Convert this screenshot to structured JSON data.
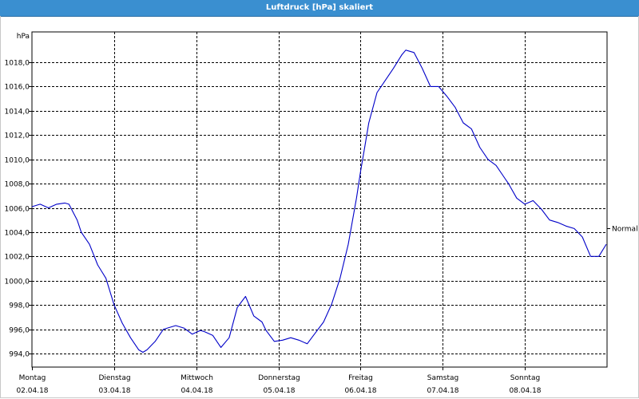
{
  "window": {
    "title": "Luftdruck [hPa] skaliert"
  },
  "chart_data": {
    "type": "line",
    "title": "Luftdruck [hPa] skaliert",
    "ylabel": "hPa",
    "xlabel": "",
    "ylim": [
      993,
      1020
    ],
    "xlim": [
      0,
      7
    ],
    "y_ticks": [
      994.0,
      996.0,
      998.0,
      1000.0,
      1002.0,
      1004.0,
      1006.0,
      1008.0,
      1010.0,
      1012.0,
      1014.0,
      1016.0,
      1018.0
    ],
    "y_tick_labels": [
      "994,0",
      "996,0",
      "998,0",
      "1000,0",
      "1002,0",
      "1004,0",
      "1006,0",
      "1008,0",
      "1010,0",
      "1012,0",
      "1014,0",
      "1016,0",
      "1018,0"
    ],
    "x_ticks": [
      {
        "day": "Montag",
        "date": "02.04.18"
      },
      {
        "day": "Dienstag",
        "date": "03.04.18"
      },
      {
        "day": "Mittwoch",
        "date": "04.04.18"
      },
      {
        "day": "Donnerstag",
        "date": "05.04.18"
      },
      {
        "day": "Freitag",
        "date": "06.04.18"
      },
      {
        "day": "Samstag",
        "date": "07.04.18"
      },
      {
        "day": "Sonntag",
        "date": "08.04.18"
      }
    ],
    "reference_line": {
      "label": "Normal",
      "value": 1004.3
    },
    "grid": true,
    "series": [
      {
        "color": "#0000c8",
        "x": [
          0.0,
          0.1,
          0.2,
          0.3,
          0.4,
          0.45,
          0.55,
          0.6,
          0.7,
          0.8,
          0.9,
          1.0,
          1.1,
          1.2,
          1.3,
          1.35,
          1.4,
          1.5,
          1.6,
          1.75,
          1.85,
          1.95,
          2.05,
          2.1,
          2.2,
          2.3,
          2.4,
          2.5,
          2.6,
          2.7,
          2.8,
          2.85,
          2.95,
          3.05,
          3.15,
          3.25,
          3.35,
          3.45,
          3.55,
          3.65,
          3.75,
          3.85,
          3.95,
          4.0,
          4.05,
          4.1,
          4.2,
          4.3,
          4.4,
          4.5,
          4.55,
          4.65,
          4.75,
          4.85,
          4.95,
          5.05,
          5.15,
          5.25,
          5.35,
          5.45,
          5.55,
          5.65,
          5.75,
          5.8,
          5.9,
          6.0,
          6.1,
          6.2,
          6.3,
          6.4,
          6.5,
          6.6,
          6.7,
          6.8,
          6.9,
          6.99
        ],
        "y": [
          1006.1,
          1006.3,
          1006.0,
          1006.3,
          1006.4,
          1006.3,
          1005.0,
          1004.0,
          1003.0,
          1001.3,
          1000.2,
          998.0,
          996.5,
          995.3,
          994.3,
          994.1,
          994.3,
          995.0,
          996.0,
          996.3,
          996.1,
          995.6,
          995.9,
          995.8,
          995.5,
          994.5,
          995.3,
          997.8,
          998.7,
          997.1,
          996.6,
          995.9,
          995.0,
          995.1,
          995.3,
          995.1,
          994.8,
          995.7,
          996.6,
          998.1,
          1000.2,
          1003.0,
          1006.8,
          1009.0,
          1011.0,
          1013.0,
          1015.5,
          1016.5,
          1017.5,
          1018.6,
          1019.0,
          1018.8,
          1017.5,
          1016.0,
          1016.0,
          1015.2,
          1014.3,
          1013.0,
          1012.5,
          1011.0,
          1010.0,
          1009.5,
          1008.5,
          1008.0,
          1006.8,
          1006.3,
          1006.6,
          1005.9,
          1005.0,
          1004.8,
          1004.5,
          1004.3,
          1003.6,
          1002.0,
          1002.0,
          1003.0
        ]
      }
    ]
  }
}
